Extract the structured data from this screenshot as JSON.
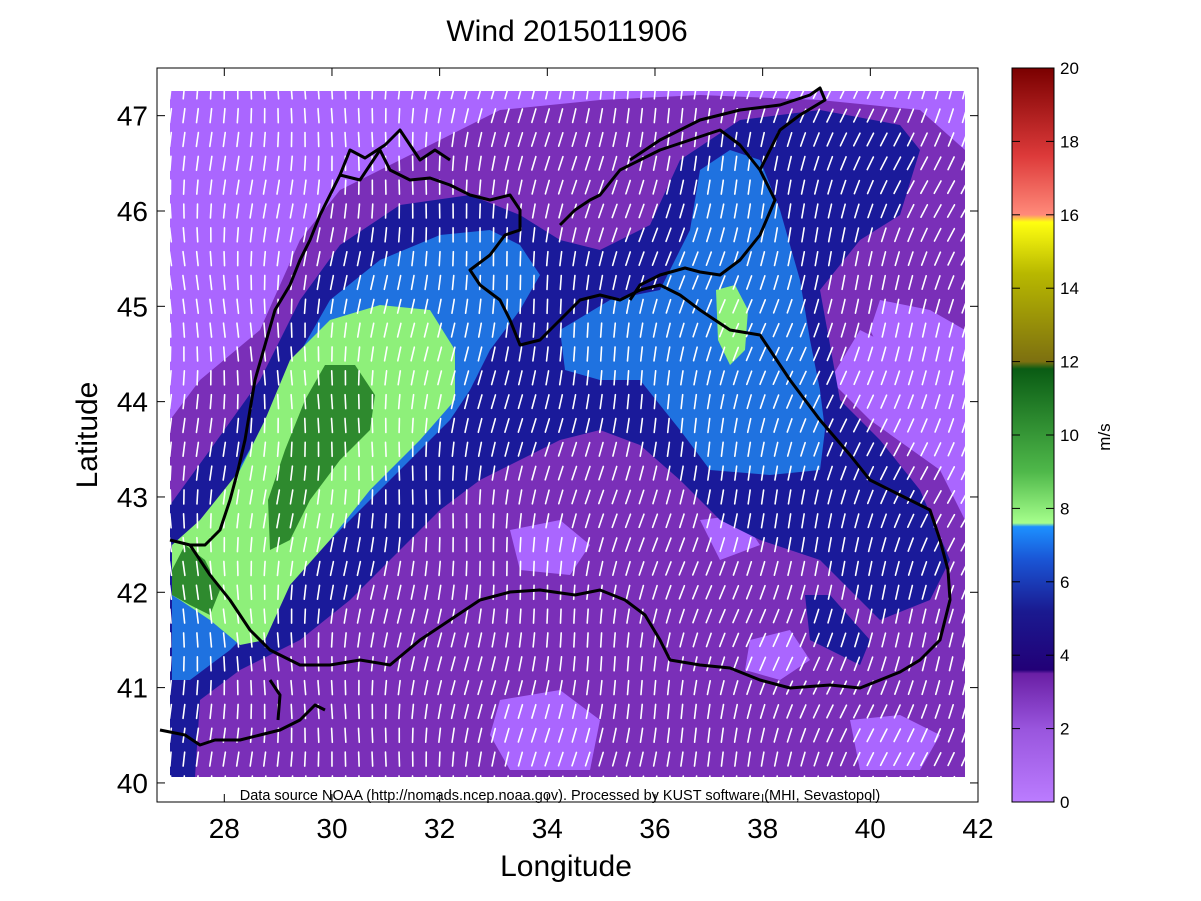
{
  "title": "Wind 2015011906",
  "xlabel": "Longitude",
  "ylabel": "Latitude",
  "credit": "Data source NOAA (http://nomads.ncep.noaa.gov). Processed by KUST software (MHI, Sevastopol)",
  "map": {
    "lon_range": [
      26.75,
      42.0
    ],
    "lat_range": [
      39.8,
      47.5
    ],
    "data_lon_range": [
      27.0,
      41.75
    ],
    "data_lat_range": [
      40.0,
      47.25
    ],
    "x_ticks": [
      28,
      30,
      32,
      34,
      36,
      38,
      40,
      42
    ],
    "y_ticks": [
      40,
      41,
      42,
      43,
      44,
      45,
      46,
      47
    ],
    "prevailing_wind": "from north-northeast"
  },
  "colorbar": {
    "label": "m/s",
    "min": 0,
    "max": 20,
    "ticks": [
      0,
      2,
      4,
      6,
      8,
      10,
      12,
      14,
      16,
      18,
      20
    ]
  },
  "colors": {
    "background": "#ffffff",
    "arrows": "#ffffff",
    "coastline": "#000000",
    "speed_0_2": "#aa66ff",
    "speed_2_4": "#7a2fb8",
    "speed_4_6": "#1a1a9a",
    "speed_6_8": "#1f72e0",
    "speed_8_10": "#8ef07a",
    "speed_10_12": "#2e8a2e"
  }
}
